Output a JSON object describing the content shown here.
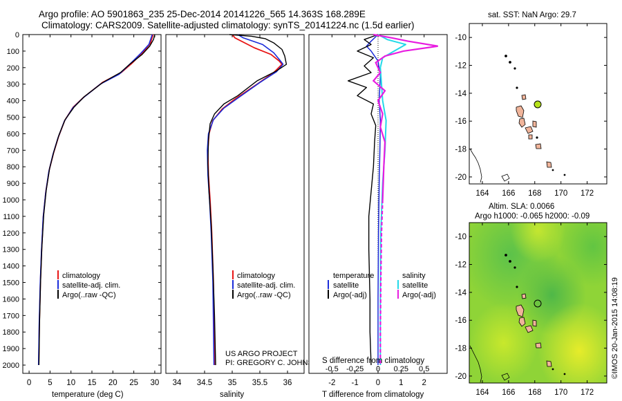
{
  "header": {
    "line1": "Argo profile: AO 5901863_235 25-Dec-2014 20141226_565 14.363S 168.289E",
    "line2": "Climatology: CARS2009. Satellite-adjusted climatology: synTS_20141224.nc (1.5d earlier)"
  },
  "colors": {
    "climatology": "#e81515",
    "satellite": "#1a2bd9",
    "argo": "#000000",
    "salinity_satellite": "#22d8e8",
    "salinity_argo": "#e81ce0",
    "land": "#f0b49a",
    "marker": "#b6e21b"
  },
  "depth_axis": {
    "ticks": [
      "0",
      "100",
      "200",
      "300",
      "400",
      "500",
      "600",
      "700",
      "800",
      "900",
      "1000",
      "1100",
      "1200",
      "1300",
      "1400",
      "1500",
      "1600",
      "1700",
      "1800",
      "1900",
      "2000"
    ]
  },
  "chart_data": [
    {
      "type": "line",
      "title": "",
      "xlabel": "temperature (deg C)",
      "ylabel": "",
      "xlim": [
        -1.5,
        31.5
      ],
      "ylim": [
        2050,
        0
      ],
      "xticks": [
        "0",
        "5",
        "10",
        "15",
        "20",
        "25",
        "30"
      ],
      "legend": [
        "climatology",
        "satellite-adj. clim.",
        "Argo(..raw -QC)"
      ],
      "series": [
        {
          "name": "climatology",
          "color": "#e81515",
          "width": 1.8,
          "points": [
            [
              29.6,
              0
            ],
            [
              29,
              50
            ],
            [
              27.5,
              100
            ],
            [
              24.5,
              175
            ],
            [
              22,
              230
            ],
            [
              17.5,
              290
            ],
            [
              13,
              380
            ],
            [
              10.5,
              440
            ],
            [
              8.5,
              520
            ],
            [
              7,
              620
            ],
            [
              5.8,
              720
            ],
            [
              4.8,
              820
            ],
            [
              4,
              950
            ],
            [
              3.4,
              1100
            ],
            [
              3,
              1300
            ],
            [
              2.7,
              1500
            ],
            [
              2.45,
              1750
            ],
            [
              2.3,
              2000
            ]
          ]
        },
        {
          "name": "satellite-adj. clim.",
          "color": "#1a2bd9",
          "width": 1.6,
          "points": [
            [
              29.4,
              0
            ],
            [
              28.6,
              60
            ],
            [
              26.8,
              110
            ],
            [
              24,
              180
            ],
            [
              21.5,
              240
            ],
            [
              17,
              300
            ],
            [
              12.8,
              385
            ],
            [
              10.4,
              445
            ],
            [
              8.4,
              525
            ],
            [
              6.9,
              625
            ],
            [
              5.7,
              725
            ],
            [
              4.7,
              830
            ],
            [
              3.95,
              960
            ],
            [
              3.35,
              1110
            ],
            [
              2.95,
              1310
            ],
            [
              2.65,
              1510
            ],
            [
              2.4,
              1760
            ],
            [
              2.25,
              2000
            ]
          ]
        },
        {
          "name": "Argo(..raw -QC)",
          "color": "#000000",
          "width": 1.4,
          "points": [
            [
              30,
              0
            ],
            [
              29.7,
              30
            ],
            [
              28.8,
              70
            ],
            [
              27,
              120
            ],
            [
              24,
              180
            ],
            [
              21.8,
              230
            ],
            [
              17.6,
              290
            ],
            [
              13.2,
              375
            ],
            [
              10.7,
              440
            ],
            [
              8.6,
              515
            ],
            [
              7.1,
              610
            ],
            [
              5.9,
              710
            ],
            [
              4.9,
              810
            ],
            [
              4.1,
              940
            ],
            [
              3.5,
              1090
            ],
            [
              3.05,
              1290
            ],
            [
              2.75,
              1490
            ],
            [
              2.5,
              1740
            ],
            [
              2.35,
              2000
            ]
          ]
        }
      ]
    },
    {
      "type": "line",
      "title": "",
      "xlabel": "salinity",
      "ylabel": "",
      "xlim": [
        33.8,
        36.3
      ],
      "ylim": [
        2050,
        0
      ],
      "xticks": [
        "34",
        "34.5",
        "35",
        "35.5",
        "36"
      ],
      "legend": [
        "climatology",
        "satellite-adj. clim.",
        "Argo(..raw -QC)"
      ],
      "annotation": [
        "US ARGO PROJECT",
        "PI: GREGORY C. JOHNSON"
      ],
      "series": [
        {
          "name": "climatology",
          "color": "#e81515",
          "width": 1.8,
          "points": [
            [
              35,
              0
            ],
            [
              35.05,
              20
            ],
            [
              35.4,
              80
            ],
            [
              35.7,
              120
            ],
            [
              35.85,
              160
            ],
            [
              35.9,
              180
            ],
            [
              35.75,
              230
            ],
            [
              35.45,
              300
            ],
            [
              35.05,
              390
            ],
            [
              34.82,
              450
            ],
            [
              34.65,
              520
            ],
            [
              34.58,
              600
            ],
            [
              34.56,
              700
            ],
            [
              34.57,
              850
            ],
            [
              34.6,
              1000
            ],
            [
              34.63,
              1200
            ],
            [
              34.66,
              1500
            ],
            [
              34.68,
              2000
            ]
          ]
        },
        {
          "name": "satellite-adj. clim.",
          "color": "#1a2bd9",
          "width": 1.6,
          "points": [
            [
              35.1,
              0
            ],
            [
              35.2,
              20
            ],
            [
              35.55,
              60
            ],
            [
              35.75,
              110
            ],
            [
              35.85,
              150
            ],
            [
              35.92,
              180
            ],
            [
              35.8,
              225
            ],
            [
              35.5,
              290
            ],
            [
              35.1,
              385
            ],
            [
              34.85,
              445
            ],
            [
              34.66,
              515
            ],
            [
              34.57,
              600
            ],
            [
              34.55,
              700
            ],
            [
              34.56,
              850
            ],
            [
              34.59,
              1000
            ],
            [
              34.62,
              1200
            ],
            [
              34.65,
              1500
            ],
            [
              34.67,
              2000
            ]
          ]
        },
        {
          "name": "Argo(..raw -QC)",
          "color": "#000000",
          "width": 1.4,
          "points": [
            [
              34.95,
              0
            ],
            [
              35.35,
              10
            ],
            [
              35.6,
              25
            ],
            [
              35.75,
              50
            ],
            [
              35.9,
              90
            ],
            [
              35.95,
              130
            ],
            [
              35.98,
              180
            ],
            [
              35.8,
              220
            ],
            [
              35.45,
              280
            ],
            [
              35.1,
              370
            ],
            [
              34.85,
              420
            ],
            [
              34.68,
              480
            ],
            [
              34.6,
              540
            ],
            [
              34.57,
              640
            ],
            [
              34.56,
              780
            ],
            [
              34.58,
              950
            ],
            [
              34.62,
              1150
            ],
            [
              34.65,
              1400
            ],
            [
              34.68,
              1700
            ],
            [
              34.7,
              2000
            ]
          ]
        }
      ]
    },
    {
      "type": "line",
      "title": "",
      "xlabel": "T difference from climatology",
      "xlabel_top": "S difference from climatology",
      "ylabel": "",
      "xlim": [
        -3,
        3
      ],
      "ylim": [
        2050,
        0
      ],
      "xticks": [
        "-2",
        "-1",
        "0",
        "1",
        "2"
      ],
      "xticks_top": [
        "-0.5",
        "-0.25",
        "0",
        "0.25",
        "0.5"
      ],
      "legend": [
        "temperature",
        "satellite",
        "Argo(-adj)",
        "salinity",
        "satellite",
        "Argo(-adj)"
      ],
      "series": [
        {
          "name": "temperature satellite",
          "color": "#1a2bd9",
          "width": 1.5,
          "points": [
            [
              0,
              0
            ],
            [
              -0.3,
              40
            ],
            [
              -0.5,
              70
            ],
            [
              -0.3,
              100
            ],
            [
              0,
              160
            ],
            [
              0.1,
              250
            ],
            [
              0.05,
              400
            ],
            [
              0.1,
              520
            ],
            [
              0.08,
              700
            ],
            [
              0.05,
              900
            ],
            [
              0.02,
              1200
            ],
            [
              0,
              1600
            ],
            [
              0,
              2000
            ]
          ]
        },
        {
          "name": "temperature Argo(-adj)",
          "color": "#000000",
          "width": 1.4,
          "points": [
            [
              0,
              0
            ],
            [
              -0.6,
              30
            ],
            [
              -0.3,
              60
            ],
            [
              -0.9,
              100
            ],
            [
              -0.2,
              140
            ],
            [
              -0.6,
              190
            ],
            [
              -0.3,
              230
            ],
            [
              -1.3,
              280
            ],
            [
              -0.5,
              320
            ],
            [
              -0.9,
              370
            ],
            [
              -0.2,
              420
            ],
            [
              -0.3,
              480
            ],
            [
              -0.1,
              550
            ],
            [
              -0.15,
              650
            ],
            [
              -0.2,
              800
            ],
            [
              -0.3,
              950
            ],
            [
              -0.4,
              1100
            ],
            [
              -0.4,
              1300
            ],
            [
              -0.35,
              1600
            ],
            [
              -0.35,
              1800
            ],
            [
              -0.3,
              2000
            ]
          ]
        },
        {
          "name": "salinity satellite",
          "color": "#22d8e8",
          "width": 2,
          "points": [
            [
              0,
              0
            ],
            [
              0.4,
              30
            ],
            [
              1.2,
              60
            ],
            [
              0.7,
              100
            ],
            [
              0.2,
              140
            ],
            [
              0.1,
              200
            ],
            [
              0.15,
              300
            ],
            [
              0.2,
              400
            ],
            [
              0.35,
              520
            ],
            [
              0.3,
              700
            ],
            [
              0.2,
              900
            ],
            [
              0.12,
              1200
            ],
            [
              0.1,
              1600
            ],
            [
              0.1,
              2000
            ]
          ]
        },
        {
          "name": "salinity Argo(-adj)",
          "color": "#e81ce0",
          "width": 2.2,
          "dashed_below": 1100,
          "points": [
            [
              -0.2,
              0
            ],
            [
              0.6,
              20
            ],
            [
              1.3,
              40
            ],
            [
              2.6,
              70
            ],
            [
              1.1,
              100
            ],
            [
              0.3,
              130
            ],
            [
              -0.1,
              170
            ],
            [
              0.1,
              230
            ],
            [
              -0.2,
              280
            ],
            [
              0.3,
              340
            ],
            [
              0,
              400
            ],
            [
              0.2,
              480
            ],
            [
              0.1,
              560
            ],
            [
              0.3,
              650
            ],
            [
              0.25,
              800
            ],
            [
              0.2,
              1000
            ],
            [
              0.15,
              1200
            ],
            [
              0.12,
              1500
            ],
            [
              0.1,
              1800
            ],
            [
              0.1,
              2000
            ]
          ]
        }
      ]
    }
  ],
  "map_top": {
    "title": "sat. SST: NaN Argo: 29.7",
    "lon_ticks": [
      "164",
      "166",
      "168",
      "170",
      "172"
    ],
    "lat_ticks": [
      "-10",
      "-12",
      "-14",
      "-16",
      "-18",
      "-20"
    ]
  },
  "map_bottom": {
    "title_line1": "Altim. SLA: 0.0066",
    "title_line2": "Argo h1000: -0.065 h2000: -0.09",
    "lon_ticks": [
      "164",
      "166",
      "168",
      "170",
      "172"
    ],
    "lat_ticks": [
      "-10",
      "-12",
      "-14",
      "-16",
      "-18",
      "-20"
    ],
    "side_label": "©IMOS 20-Jan-2015 14:08:19"
  }
}
